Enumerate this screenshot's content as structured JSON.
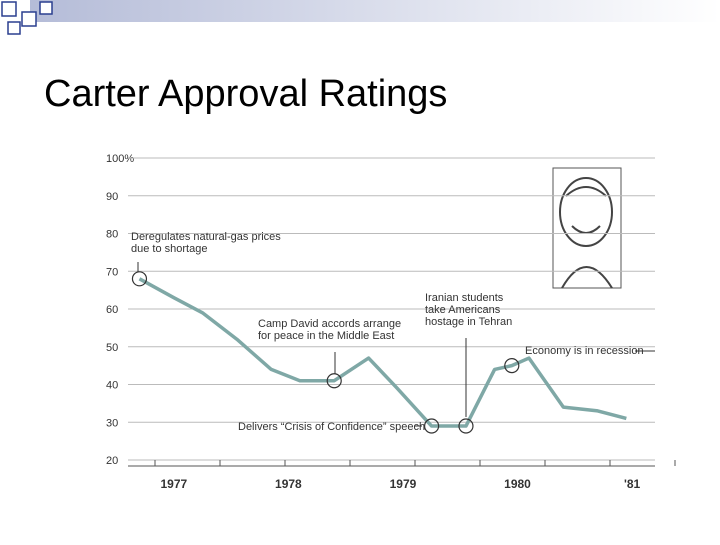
{
  "title": "Carter Approval Ratings",
  "chart_data": {
    "type": "line",
    "x": [
      1976.7,
      1977.0,
      1977.25,
      1977.55,
      1977.85,
      1978.1,
      1978.4,
      1978.7,
      1978.95,
      1979.25,
      1979.55,
      1979.8,
      1979.95,
      1980.1,
      1980.4,
      1980.7,
      1980.95
    ],
    "series": [
      {
        "name": "Approval",
        "color": "#7fa8a6",
        "values": [
          68,
          63,
          59,
          52,
          44,
          41,
          41,
          47,
          39,
          29,
          29,
          44,
          45,
          47,
          34,
          33,
          31
        ]
      }
    ],
    "xlim": [
      1976.6,
      1981.2
    ],
    "xticks": [
      1977,
      1978,
      1979,
      1980,
      {
        "value": 1981,
        "label": "'81"
      }
    ],
    "ylim": [
      20,
      100
    ],
    "yticks": [
      20,
      30,
      40,
      50,
      60,
      70,
      80,
      90,
      {
        "value": 100,
        "label": "100%"
      }
    ],
    "grid": true,
    "annotations": [
      {
        "text": [
          "Deregulates natural-gas prices",
          "due to shortage"
        ]
      },
      {
        "text": [
          "Camp David accords arrange",
          "for peace in the Middle East"
        ]
      },
      {
        "text": [
          "Delivers “Crisis of Confidence” speech"
        ]
      },
      {
        "text": [
          "Iranian students",
          "take Americans",
          "hostage in Tehran"
        ]
      },
      {
        "text": [
          "Economy is in recession"
        ]
      }
    ]
  }
}
